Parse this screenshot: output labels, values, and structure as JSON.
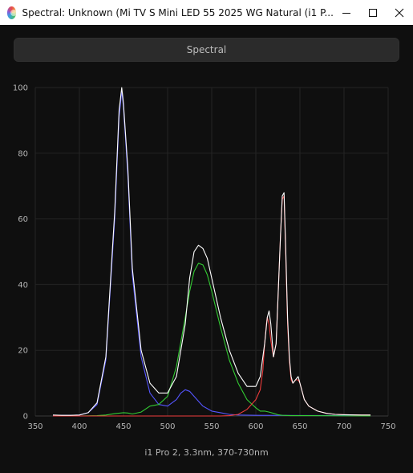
{
  "window": {
    "title": "Spectral: Unknown (Mi TV S Mini LED 55 2025 WG Natural (i1 P...",
    "app_icon": "spectral-app-icon",
    "minimize_icon": "minimize-icon",
    "maximize_icon": "maximize-icon",
    "close_icon": "close-icon"
  },
  "toolbar": {
    "spectral_label": "Spectral"
  },
  "footer": {
    "instrument": "i1 Pro 2, 3.3nm, 370-730nm"
  },
  "chart_data": {
    "type": "line",
    "xlim": [
      350,
      750
    ],
    "ylim": [
      0,
      100
    ],
    "x_ticks": [
      350,
      400,
      450,
      500,
      550,
      600,
      650,
      700,
      750
    ],
    "y_ticks": [
      0,
      20,
      40,
      60,
      80,
      100
    ],
    "grid": true,
    "series": [
      {
        "color": "#ffffff",
        "x": [
          370,
          380,
          390,
          400,
          410,
          420,
          430,
          440,
          445,
          448,
          450,
          455,
          460,
          470,
          480,
          490,
          500,
          510,
          520,
          525,
          530,
          535,
          540,
          545,
          550,
          560,
          570,
          580,
          590,
          600,
          605,
          610,
          613,
          615,
          617,
          620,
          623,
          625,
          628,
          630,
          632,
          634,
          636,
          638,
          640,
          642,
          645,
          648,
          650,
          655,
          660,
          670,
          680,
          690,
          700,
          720,
          730
        ],
        "y": [
          0.3,
          0.2,
          0.2,
          0.3,
          1,
          4,
          18,
          62,
          93,
          100,
          95,
          75,
          45,
          20,
          10,
          7,
          7,
          12,
          28,
          42,
          50,
          52,
          51,
          48,
          42,
          30,
          20,
          13,
          9,
          9,
          12,
          22,
          30,
          32,
          28,
          18,
          22,
          35,
          55,
          67,
          68,
          50,
          30,
          18,
          12,
          10,
          11,
          12,
          10,
          5,
          3,
          1.5,
          0.8,
          0.5,
          0.4,
          0.3,
          0.3
        ]
      },
      {
        "color": "#5555ff",
        "x": [
          370,
          390,
          400,
          410,
          420,
          430,
          440,
          445,
          448,
          450,
          455,
          460,
          470,
          480,
          490,
          500,
          510,
          515,
          520,
          525,
          530,
          540,
          550,
          560,
          570,
          580,
          600,
          730
        ],
        "y": [
          0.2,
          0.2,
          0.3,
          1,
          3.5,
          17,
          60,
          91,
          99,
          94,
          73,
          43,
          18,
          7,
          3.5,
          3,
          5,
          7,
          8,
          7.5,
          6,
          3,
          1.5,
          1,
          0.5,
          0.3,
          0.2,
          0.1
        ]
      },
      {
        "color": "#33cc33",
        "x": [
          370,
          400,
          420,
          430,
          440,
          450,
          455,
          460,
          470,
          480,
          490,
          500,
          510,
          520,
          525,
          530,
          535,
          540,
          545,
          550,
          560,
          570,
          580,
          590,
          600,
          605,
          610,
          615,
          620,
          625,
          630,
          640,
          650,
          660,
          730
        ],
        "y": [
          0,
          0,
          0.1,
          0.3,
          0.7,
          1,
          0.9,
          0.6,
          1.2,
          3,
          3.5,
          6,
          15,
          30,
          38,
          44,
          46.5,
          46,
          43,
          38,
          27,
          17,
          10,
          5,
          2.5,
          1.5,
          1.5,
          1.2,
          0.8,
          0.4,
          0.2,
          0.1,
          0.1,
          0.1,
          0
        ]
      },
      {
        "color": "#ee3b3b",
        "x": [
          370,
          560,
          570,
          580,
          590,
          600,
          605,
          608,
          610,
          612,
          613,
          615,
          617,
          620,
          623,
          625,
          628,
          630,
          632,
          634,
          636,
          638,
          640,
          642,
          645,
          648,
          650,
          655,
          660,
          670,
          680,
          690,
          700,
          720,
          730
        ],
        "y": [
          0,
          0,
          0.1,
          0.5,
          2,
          5,
          8,
          14,
          22,
          28,
          30,
          28,
          23,
          18,
          22,
          35,
          55,
          66,
          67,
          48,
          28,
          17,
          11,
          10,
          11,
          11,
          10,
          5,
          3,
          1.5,
          0.8,
          0.5,
          0.4,
          0.3,
          0.3
        ]
      }
    ]
  }
}
